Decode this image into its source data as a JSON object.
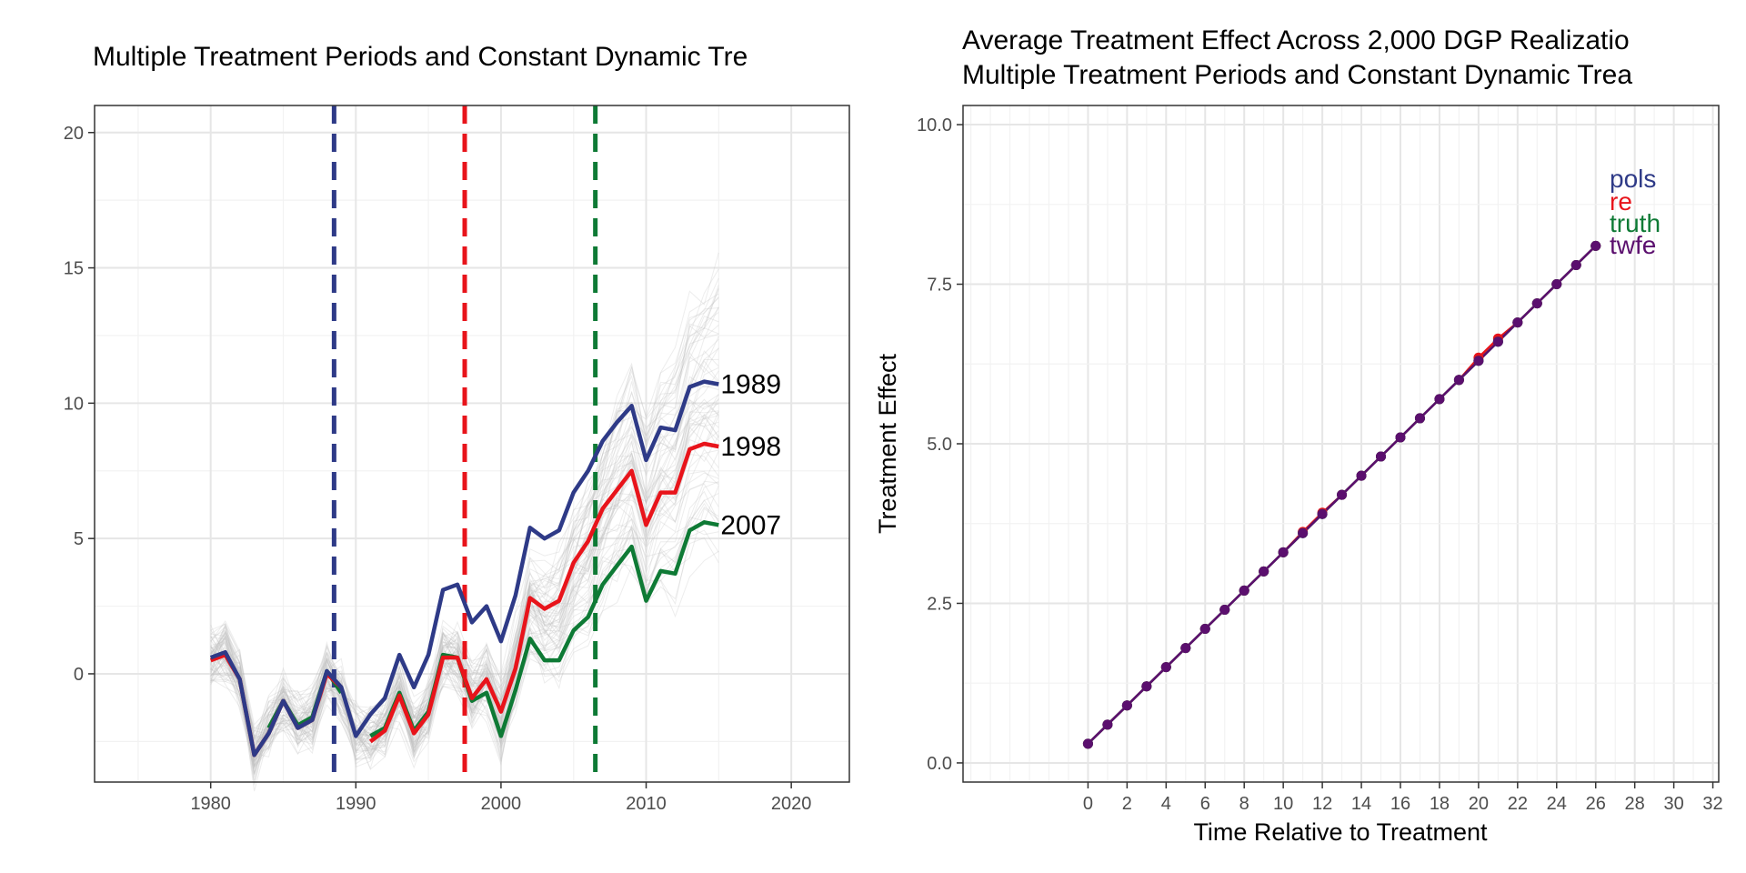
{
  "chart_data": [
    {
      "type": "line",
      "title": "Multiple Treatment Periods and Constant Dynamic Tre",
      "xlabel": "",
      "ylabel": "",
      "xlim": [
        1972,
        2024
      ],
      "ylim": [
        -4.0,
        21.0
      ],
      "xticks": [
        1980,
        1990,
        2000,
        2010,
        2020
      ],
      "yticks": [
        0,
        5,
        10,
        15,
        20
      ],
      "grid": true,
      "x": [
        1980,
        1981,
        1982,
        1983,
        1984,
        1985,
        1986,
        1987,
        1988,
        1989,
        1990,
        1991,
        1992,
        1993,
        1994,
        1995,
        1996,
        1997,
        1998,
        1999,
        2000,
        2001,
        2002,
        2003,
        2004,
        2005,
        2006,
        2007,
        2008,
        2009,
        2010,
        2011,
        2012,
        2013,
        2014,
        2015
      ],
      "series": [
        {
          "name": "1989",
          "color": "#2E3A87",
          "values": [
            0.6,
            0.8,
            -0.2,
            -3.0,
            -2.2,
            -1.0,
            -2.0,
            -1.7,
            0.1,
            -0.5,
            -2.3,
            -1.5,
            -0.9,
            0.7,
            -0.5,
            0.7,
            3.1,
            3.3,
            1.9,
            2.5,
            1.2,
            2.9,
            5.4,
            5.0,
            5.3,
            6.7,
            7.5,
            8.6,
            9.3,
            9.9,
            7.9,
            9.1,
            9.0,
            10.6,
            10.8,
            10.7
          ]
        },
        {
          "name": "1998",
          "color": "#E8141B",
          "values": [
            0.5,
            0.7,
            -0.2,
            -3.0,
            -2.2,
            -1.0,
            -2.0,
            -1.7,
            0.0,
            -0.5,
            null,
            -2.5,
            -2.1,
            -0.8,
            -2.2,
            -1.5,
            0.6,
            0.6,
            -0.9,
            -0.2,
            -1.4,
            0.2,
            2.8,
            2.4,
            2.7,
            4.1,
            4.9,
            6.1,
            6.8,
            7.5,
            5.5,
            6.7,
            6.7,
            8.3,
            8.5,
            8.4
          ]
        },
        {
          "name": "2007",
          "color": "#0E7A35",
          "values": [
            null,
            null,
            null,
            null,
            -2.0,
            -1.0,
            -1.9,
            -1.6,
            0.1,
            -0.7,
            null,
            -2.3,
            -2.0,
            -0.7,
            -2.1,
            -1.4,
            0.7,
            0.6,
            -1.0,
            -0.7,
            -2.3,
            -0.6,
            1.3,
            0.5,
            0.5,
            1.6,
            2.1,
            3.3,
            4.0,
            4.7,
            2.7,
            3.8,
            3.7,
            5.3,
            5.6,
            5.5
          ]
        }
      ],
      "treatment_lines": [
        {
          "x": 1988.5,
          "color": "#2E3A87"
        },
        {
          "x": 1997.5,
          "color": "#E8141B"
        },
        {
          "x": 2006.5,
          "color": "#0E7A35"
        }
      ],
      "background_series_color": "#bdbdbd",
      "end_labels": [
        "1989",
        "1998",
        "2007"
      ]
    },
    {
      "type": "line",
      "title": "Average Treatment Effect Across 2,000 DGP Realizatio",
      "subtitle": "Multiple Treatment Periods and Constant Dynamic Trea",
      "xlabel": "Time Relative to Treatment",
      "ylabel": "Treatment Effect",
      "xlim": [
        -6.4,
        32.3
      ],
      "ylim": [
        -0.3,
        10.3
      ],
      "xticks": [
        0,
        2,
        4,
        6,
        8,
        10,
        12,
        14,
        16,
        18,
        20,
        22,
        24,
        26,
        28,
        30,
        32
      ],
      "yticks": [
        0.0,
        2.5,
        5.0,
        7.5,
        10.0
      ],
      "ytick_labels": [
        "0.0",
        "2.5",
        "5.0",
        "7.5",
        "10.0"
      ],
      "grid": true,
      "x": [
        0,
        1,
        2,
        3,
        4,
        5,
        6,
        7,
        8,
        9,
        10,
        11,
        12,
        13,
        14,
        15,
        16,
        17,
        18,
        19,
        20,
        21,
        22,
        23,
        24,
        25,
        26
      ],
      "series": [
        {
          "name": "pols",
          "color": "#2E3A87",
          "values": [
            0.3,
            0.6,
            0.9,
            1.2,
            1.5,
            1.8,
            2.1,
            2.4,
            2.7,
            3.0,
            3.3,
            3.6,
            3.9,
            4.2,
            4.5,
            4.8,
            5.1,
            5.4,
            5.7,
            6.0,
            6.3,
            6.6,
            6.9,
            7.2,
            7.5,
            7.8,
            8.1
          ]
        },
        {
          "name": "re",
          "color": "#E8141B",
          "values": [
            0.3,
            0.6,
            0.9,
            1.2,
            1.5,
            1.8,
            2.1,
            2.4,
            2.7,
            3.0,
            3.3,
            3.62,
            3.92,
            4.2,
            4.5,
            4.8,
            5.1,
            5.4,
            5.7,
            6.0,
            6.35,
            6.65,
            6.9,
            7.2,
            7.5,
            7.8,
            8.1
          ]
        },
        {
          "name": "truth",
          "color": "#0E7A35",
          "values": [
            0.3,
            0.6,
            0.9,
            1.2,
            1.5,
            1.8,
            2.1,
            2.4,
            2.7,
            3.0,
            3.3,
            3.6,
            3.9,
            4.2,
            4.5,
            4.8,
            5.1,
            5.4,
            5.7,
            6.0,
            6.3,
            6.6,
            6.9,
            7.2,
            7.5,
            7.8,
            8.1
          ]
        },
        {
          "name": "twfe",
          "color": "#5B0F6E",
          "values": [
            0.3,
            0.6,
            0.9,
            1.2,
            1.5,
            1.8,
            2.1,
            2.4,
            2.7,
            3.0,
            3.3,
            3.6,
            3.9,
            4.2,
            4.5,
            4.8,
            5.1,
            5.4,
            5.7,
            6.0,
            6.3,
            6.6,
            6.9,
            7.2,
            7.5,
            7.8,
            8.1
          ]
        }
      ],
      "legend": "inline-right"
    }
  ]
}
